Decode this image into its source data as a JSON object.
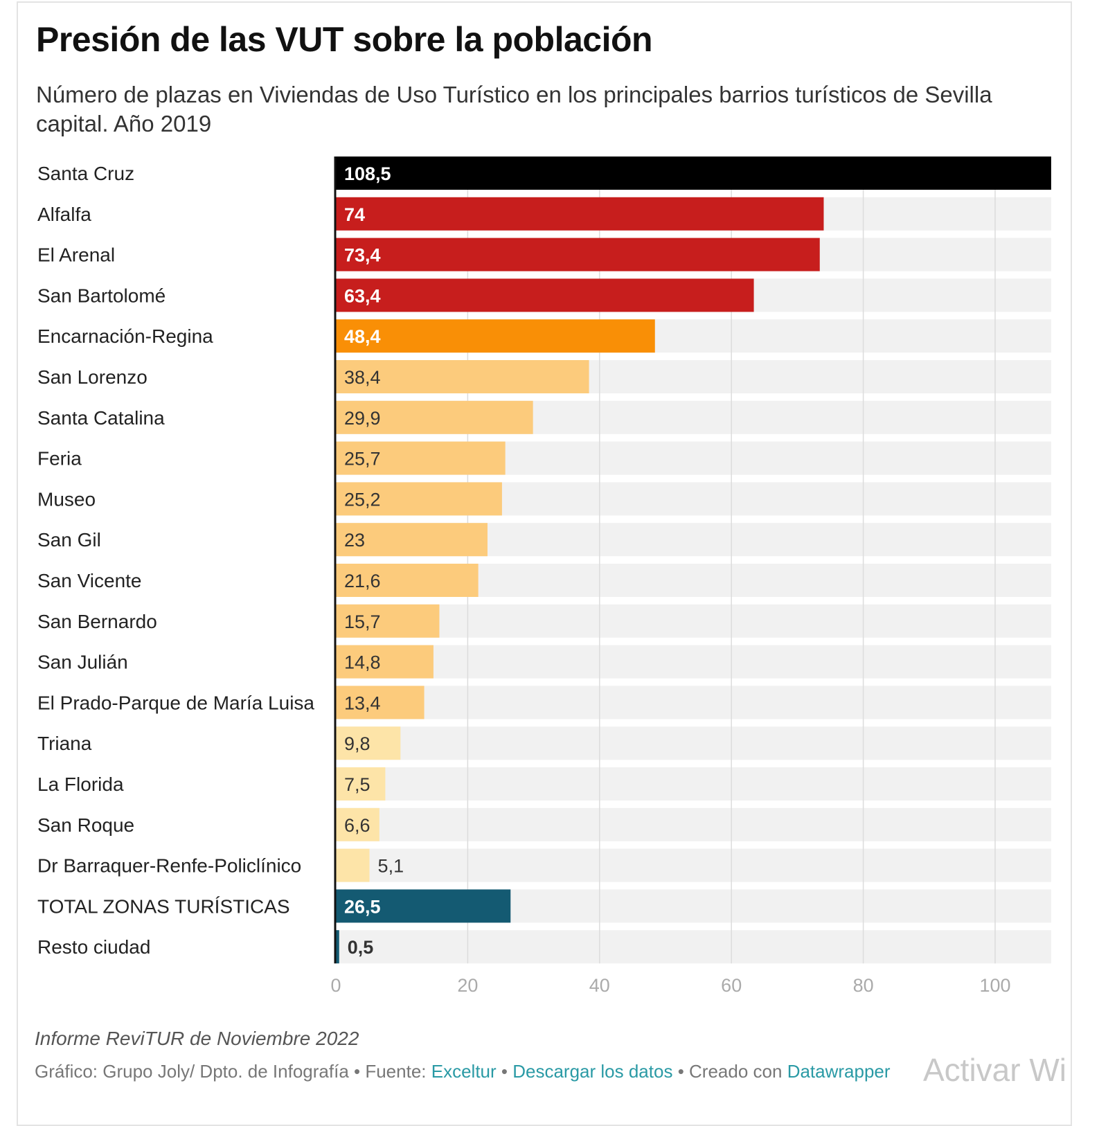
{
  "title": "Presión de las VUT sobre la población",
  "subtitle": "Número de plazas en Viviendas de Uso Turístico en los principales barrios turísticos de Sevilla capital. Año 2019",
  "notes": "Informe ReviTUR de Noviembre 2022",
  "byline": {
    "credit": "Gráfico: Grupo Joly/ Dpto. de Infografía",
    "sep": " • ",
    "source_label": "Fuente: ",
    "source_link": "Exceltur",
    "download_link": "Descargar los datos",
    "created_label": "Creado con ",
    "created_link": "Datawrapper"
  },
  "watermark": "Activar Wi",
  "colors": {
    "highest": "#000000",
    "high": "#c71e1d",
    "mid": "#f98f06",
    "low": "#fccb7c",
    "lowest": "#fde4a8",
    "total": "#145a72",
    "track": "#f1f1f1",
    "link": "#2a9aa5"
  },
  "chart_data": {
    "type": "bar",
    "orientation": "horizontal",
    "title": "Presión de las VUT sobre la población",
    "xlim": [
      0,
      108.5
    ],
    "xticks": [
      0,
      20,
      40,
      60,
      80,
      100
    ],
    "grid": true,
    "categories": [
      "Santa Cruz",
      "Alfalfa",
      "El Arenal",
      "San Bartolomé",
      "Encarnación-Regina",
      "San Lorenzo",
      "Santa Catalina",
      "Feria",
      "Museo",
      "San Gil",
      "San Vicente",
      "San Bernardo",
      "San Julián",
      "El Prado-Parque de María Luisa",
      "Triana",
      "La Florida",
      "San Roque",
      "Dr Barraquer-Renfe-Policlínico",
      "TOTAL ZONAS TURÍSTICAS",
      "Resto ciudad"
    ],
    "values": [
      108.5,
      74,
      73.4,
      63.4,
      48.4,
      38.4,
      29.9,
      25.7,
      25.2,
      23,
      21.6,
      15.7,
      14.8,
      13.4,
      9.8,
      7.5,
      6.6,
      5.1,
      26.5,
      0.5
    ],
    "value_labels": [
      "108,5",
      "74",
      "73,4",
      "63,4",
      "48,4",
      "38,4",
      "29,9",
      "25,7",
      "25,2",
      "23",
      "21,6",
      "15,7",
      "14,8",
      "13,4",
      "9,8",
      "7,5",
      "6,6",
      "5,1",
      "26,5",
      "0,5"
    ],
    "bar_colors": [
      "highest",
      "high",
      "high",
      "high",
      "mid",
      "low",
      "low",
      "low",
      "low",
      "low",
      "low",
      "low",
      "low",
      "low",
      "lowest",
      "lowest",
      "lowest",
      "lowest",
      "total",
      "total"
    ]
  }
}
